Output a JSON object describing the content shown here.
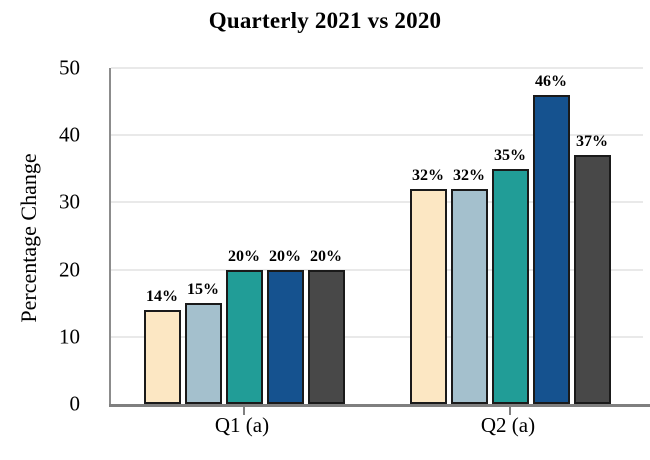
{
  "chart_data": {
    "type": "bar",
    "title": "Quarterly 2021 vs 2020",
    "categories": [
      "Q1 (a)",
      "Q2 (a)"
    ],
    "series": [
      {
        "color": "#FCE7C3",
        "values": [
          14,
          32
        ],
        "labels": [
          "14%",
          "32%"
        ]
      },
      {
        "color": "#A4C0CD",
        "values": [
          15,
          32
        ],
        "labels": [
          "15%",
          "32%"
        ]
      },
      {
        "color": "#219D97",
        "values": [
          20,
          35
        ],
        "labels": [
          "20%",
          "35%"
        ]
      },
      {
        "color": "#15528F",
        "values": [
          20,
          46
        ],
        "labels": [
          "20%",
          "46%"
        ]
      },
      {
        "color": "#484848",
        "values": [
          20,
          37
        ],
        "labels": [
          "20%",
          "37%"
        ]
      }
    ],
    "xlabel": "",
    "ylabel": "Percentage Change",
    "ylim": [
      0,
      50
    ],
    "yticks": [
      0,
      10,
      20,
      30,
      40,
      50
    ],
    "grid": "horizontal",
    "legend_position": "none",
    "colors": {
      "bar_border": "#1A1A1A",
      "axis_line": "#808080",
      "gridline": "#E9E9E9",
      "text": "#000000",
      "background": "#FFFFFF"
    }
  }
}
